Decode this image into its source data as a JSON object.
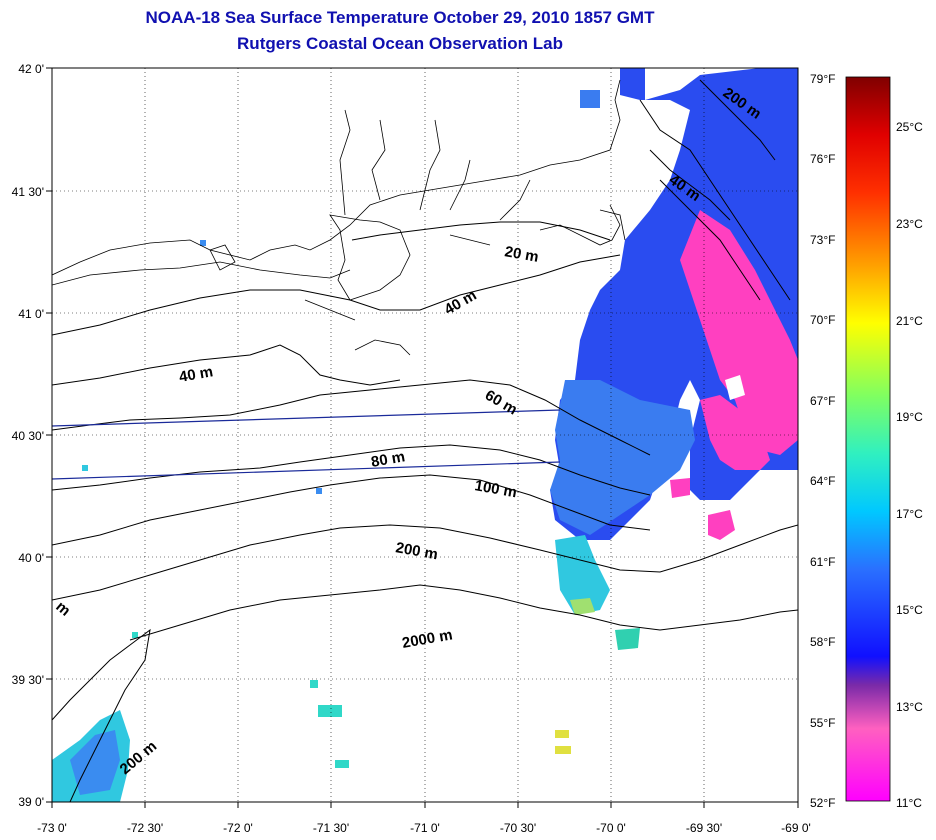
{
  "title": "NOAA-18 Sea Surface Temperature October 29, 2010 1857 GMT",
  "subtitle": "Rutgers Coastal Ocean Observation Lab",
  "lat_labels": [
    "42 0'",
    "41 30'",
    "41 0'",
    "40 30'",
    "40 0'",
    "39 30'",
    "39 0'"
  ],
  "lon_labels": [
    "-73 0'",
    "-72 30'",
    "-72 0'",
    "-71 30'",
    "-71 0'",
    "-70 30'",
    "-70 0'",
    "-69 30'",
    "-69 0'"
  ],
  "fahrenheit_labels": [
    "79°F",
    "76°F",
    "73°F",
    "70°F",
    "67°F",
    "64°F",
    "61°F",
    "58°F",
    "55°F",
    "52°F"
  ],
  "celsius_labels": [
    "25°C",
    "23°C",
    "21°C",
    "19°C",
    "17°C",
    "15°C",
    "13°C",
    "11°C"
  ],
  "contour_labels": [
    "200 m",
    "40 m",
    "20 m",
    "40 m",
    "40 m",
    "60 m",
    "80 m",
    "100 m",
    "200 m",
    "2000 m",
    "200 m",
    "m"
  ],
  "colors": {
    "title": "#1010b0",
    "temp_13C": "#1a1aff",
    "temp_15C": "#3a8cf0",
    "temp_17C": "#30d8c8",
    "temp_cold": "#ff40b0",
    "temp_19C": "#a0f060"
  }
}
